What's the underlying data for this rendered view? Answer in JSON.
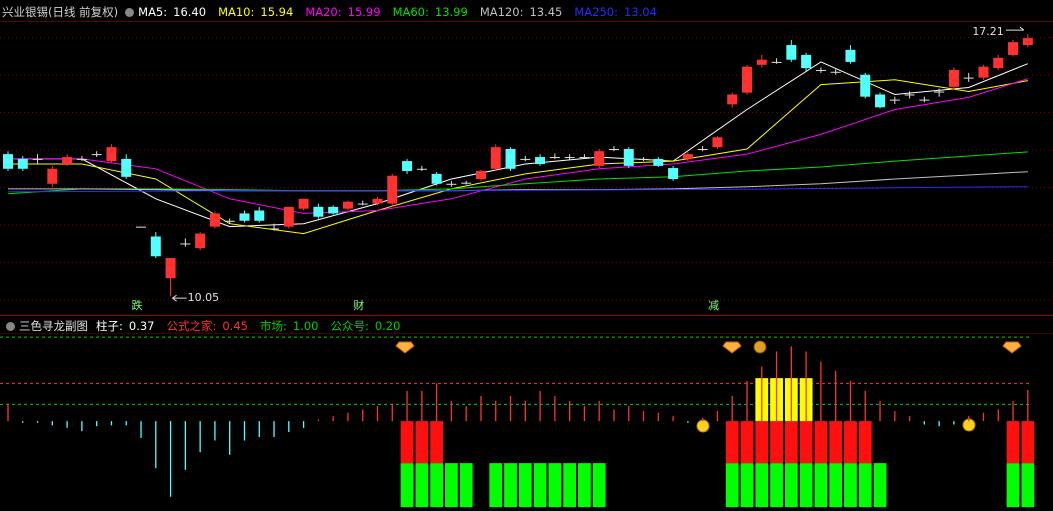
{
  "chart_data": [
    {
      "type": "candlestick",
      "title": "兴业银锡(日线 前复权)",
      "ylim": [
        9.59,
        17.54
      ],
      "up_color": "#ff3232",
      "down_color": "#54ffff",
      "doji_color": "#e0e0e0",
      "categories": [
        null,
        null,
        null,
        null,
        null,
        null,
        null,
        null,
        null,
        "跌",
        null,
        null,
        null,
        null,
        null,
        null,
        null,
        null,
        null,
        null,
        null,
        null,
        null,
        null,
        "财",
        null,
        null,
        null,
        null,
        null,
        null,
        null,
        null,
        null,
        null,
        null,
        null,
        null,
        null,
        null,
        null,
        null,
        null,
        null,
        null,
        null,
        null,
        null,
        "减",
        null,
        null,
        null,
        null,
        null,
        null,
        null,
        null,
        null,
        null,
        null,
        null,
        null,
        null,
        null,
        null,
        null,
        null,
        null,
        null,
        null
      ],
      "ohlc": [
        [
          13.93,
          14.01,
          13.47,
          13.53
        ],
        [
          13.8,
          13.88,
          13.47,
          13.53
        ],
        [
          13.8,
          13.93,
          13.66,
          13.8
        ],
        [
          13.12,
          13.61,
          13.04,
          13.53
        ],
        [
          13.66,
          13.93,
          13.61,
          13.85
        ],
        [
          13.8,
          13.88,
          13.74,
          13.8
        ],
        [
          13.93,
          14.01,
          13.85,
          13.93
        ],
        [
          13.74,
          14.2,
          13.7,
          14.12
        ],
        [
          13.8,
          13.93,
          13.25,
          13.31
        ],
        [
          11.95,
          11.95,
          11.95,
          11.95
        ],
        [
          11.68,
          11.8,
          11.09,
          11.14
        ],
        [
          10.54,
          11.09,
          10.05,
          11.09
        ],
        [
          11.49,
          11.63,
          11.4,
          11.49
        ],
        [
          11.36,
          11.8,
          11.3,
          11.76
        ],
        [
          11.95,
          12.36,
          11.9,
          12.31
        ],
        [
          12.11,
          12.17,
          12.03,
          12.11
        ],
        [
          12.31,
          12.39,
          12.06,
          12.11
        ],
        [
          12.39,
          12.49,
          12.06,
          12.11
        ],
        [
          11.9,
          12.03,
          11.84,
          11.9
        ],
        [
          11.95,
          12.49,
          11.9,
          12.49
        ],
        [
          12.44,
          12.71,
          12.39,
          12.71
        ],
        [
          12.49,
          12.58,
          12.17,
          12.22
        ],
        [
          12.49,
          12.53,
          12.28,
          12.31
        ],
        [
          12.44,
          12.66,
          12.39,
          12.63
        ],
        [
          12.58,
          12.66,
          12.53,
          12.58
        ],
        [
          12.58,
          12.76,
          12.53,
          12.71
        ],
        [
          12.58,
          13.39,
          12.49,
          13.34
        ],
        [
          13.74,
          13.8,
          13.39,
          13.47
        ],
        [
          13.53,
          13.61,
          13.47,
          13.53
        ],
        [
          13.39,
          13.44,
          13.07,
          13.12
        ],
        [
          13.12,
          13.2,
          13.04,
          13.12
        ],
        [
          13.15,
          13.2,
          13.1,
          13.15
        ],
        [
          13.25,
          13.5,
          13.2,
          13.47
        ],
        [
          13.53,
          14.2,
          13.47,
          14.12
        ],
        [
          14.07,
          14.12,
          13.47,
          13.53
        ],
        [
          13.8,
          13.88,
          13.74,
          13.8
        ],
        [
          13.85,
          13.93,
          13.61,
          13.66
        ],
        [
          13.85,
          13.95,
          13.8,
          13.85
        ],
        [
          13.85,
          13.93,
          13.78,
          13.85
        ],
        [
          13.85,
          13.93,
          13.8,
          13.85
        ],
        [
          13.61,
          14.07,
          13.55,
          14.01
        ],
        [
          14.07,
          14.15,
          14.01,
          14.07
        ],
        [
          14.07,
          14.12,
          13.55,
          13.61
        ],
        [
          13.8,
          13.85,
          13.74,
          13.8
        ],
        [
          13.8,
          13.85,
          13.58,
          13.61
        ],
        [
          13.55,
          13.61,
          13.2,
          13.25
        ],
        [
          13.8,
          13.98,
          13.74,
          13.93
        ],
        [
          14.07,
          14.15,
          14.01,
          14.07
        ],
        [
          14.12,
          14.42,
          14.07,
          14.39
        ],
        [
          15.29,
          15.61,
          15.2,
          15.56
        ],
        [
          15.61,
          16.37,
          15.56,
          16.32
        ],
        [
          16.37,
          16.64,
          16.3,
          16.51
        ],
        [
          16.45,
          16.55,
          16.4,
          16.45
        ],
        [
          16.91,
          17.05,
          16.45,
          16.51
        ],
        [
          16.64,
          16.7,
          16.2,
          16.28
        ],
        [
          16.23,
          16.3,
          16.15,
          16.23
        ],
        [
          16.18,
          16.25,
          16.1,
          16.18
        ],
        [
          16.78,
          16.91,
          16.4,
          16.45
        ],
        [
          16.1,
          16.15,
          15.45,
          15.5
        ],
        [
          15.56,
          15.61,
          15.18,
          15.21
        ],
        [
          15.42,
          15.5,
          15.3,
          15.42
        ],
        [
          15.56,
          15.65,
          15.45,
          15.56
        ],
        [
          15.42,
          15.5,
          15.35,
          15.42
        ],
        [
          15.64,
          15.72,
          15.5,
          15.64
        ],
        [
          15.77,
          16.3,
          15.7,
          16.23
        ],
        [
          16.02,
          16.15,
          15.9,
          16.02
        ],
        [
          16.02,
          16.37,
          15.96,
          16.32
        ],
        [
          16.28,
          16.64,
          16.23,
          16.56
        ],
        [
          16.64,
          17.05,
          16.6,
          16.99
        ],
        [
          16.91,
          17.21,
          16.85,
          17.1
        ]
      ],
      "series": [
        {
          "name": "MA5",
          "color": "#ffffff",
          "legend_value": "16.40",
          "x": [
            0,
            5,
            10,
            15,
            20,
            25,
            30,
            35,
            40,
            45,
            50,
            55,
            60,
            65,
            69
          ],
          "values": [
            13.8,
            13.8,
            12.71,
            11.95,
            12.03,
            12.58,
            13.25,
            13.66,
            13.85,
            13.74,
            15.15,
            16.45,
            15.56,
            15.75,
            16.4
          ]
        },
        {
          "name": "MA10",
          "color": "#ffff00",
          "legend_value": "15.94",
          "x": [
            0,
            5,
            10,
            15,
            20,
            25,
            30,
            35,
            40,
            45,
            50,
            55,
            60,
            65,
            69
          ],
          "values": [
            13.66,
            13.66,
            13.25,
            12.03,
            11.76,
            12.39,
            12.98,
            13.39,
            13.66,
            13.74,
            14.07,
            15.83,
            15.96,
            15.64,
            15.94
          ]
        },
        {
          "name": "MA20",
          "color": "#ff00ff",
          "legend_value": "15.99",
          "x": [
            0,
            5,
            10,
            15,
            20,
            25,
            30,
            35,
            40,
            45,
            50,
            55,
            60,
            65,
            69
          ],
          "values": [
            13.8,
            13.8,
            13.53,
            12.71,
            12.31,
            12.39,
            12.71,
            13.25,
            13.53,
            13.66,
            13.93,
            14.47,
            15.15,
            15.48,
            15.99
          ]
        },
        {
          "name": "MA60",
          "color": "#00e000",
          "legend_value": "13.99",
          "x": [
            0,
            5,
            10,
            15,
            20,
            25,
            30,
            35,
            40,
            45,
            50,
            55,
            60,
            65,
            69
          ],
          "values": [
            12.85,
            12.98,
            12.98,
            12.96,
            12.93,
            12.93,
            12.98,
            13.12,
            13.25,
            13.31,
            13.47,
            13.58,
            13.74,
            13.88,
            13.99
          ]
        },
        {
          "name": "MA120",
          "color": "#c0c0c0",
          "legend_value": "13.45",
          "x": [
            0,
            5,
            10,
            15,
            20,
            25,
            30,
            35,
            40,
            45,
            50,
            55,
            60,
            65,
            69
          ],
          "values": [
            12.98,
            12.98,
            12.96,
            12.93,
            12.93,
            12.93,
            12.93,
            12.96,
            12.96,
            12.98,
            13.04,
            13.12,
            13.25,
            13.36,
            13.45
          ]
        },
        {
          "name": "MA250",
          "color": "#2a2aff",
          "legend_value": "13.04",
          "x": [
            0,
            5,
            10,
            15,
            20,
            25,
            30,
            35,
            40,
            45,
            50,
            55,
            60,
            65,
            69
          ],
          "values": [
            12.9,
            12.91,
            12.92,
            12.93,
            12.93,
            12.93,
            12.93,
            12.94,
            12.95,
            12.96,
            12.97,
            12.99,
            13.01,
            13.03,
            13.04
          ]
        }
      ]
    },
    {
      "type": "signal-bar",
      "title": "三色寻龙副图",
      "ylim": [
        -1.07,
        1.24
      ],
      "series": [
        {
          "name": "柱子",
          "legend_value": "0.37",
          "color": "#ffffff",
          "up_color": "#ff3232",
          "down_color": "#54ffff",
          "values": [
            0.21,
            -0.02,
            -0.02,
            -0.05,
            -0.08,
            -0.12,
            -0.06,
            -0.05,
            -0.05,
            -0.2,
            -0.56,
            -0.9,
            -0.58,
            -0.37,
            -0.23,
            -0.4,
            -0.23,
            -0.19,
            -0.19,
            -0.13,
            -0.08,
            0.02,
            0.06,
            0.1,
            0.14,
            0.18,
            0.21,
            0.36,
            0.36,
            0.45,
            0.24,
            0.18,
            0.3,
            0.24,
            0.3,
            0.24,
            0.36,
            0.3,
            0.24,
            0.18,
            0.24,
            0.14,
            0.18,
            0.12,
            0.1,
            0.06,
            -0.02,
            0.04,
            0.12,
            0.3,
            0.48,
            0.65,
            0.83,
            0.89,
            0.83,
            0.71,
            0.6,
            0.48,
            0.36,
            0.24,
            0.12,
            0.06,
            -0.04,
            -0.06,
            -0.04,
            0.06,
            0.1,
            0.14,
            0.24,
            0.37
          ]
        }
      ],
      "levels": [
        {
          "name": "公式之家",
          "value": 0.45,
          "legend_value": "0.45",
          "color": "#ff3232"
        },
        {
          "name": "市场",
          "value": 1,
          "legend_value": "1.00",
          "color": "#00d000"
        },
        {
          "name": "公众号",
          "value": 0.2,
          "legend_value": "0.20",
          "color": "#00d000"
        }
      ],
      "signals": {
        "red": {
          "color": "#ff1010",
          "indices": [
            27,
            28,
            29,
            49,
            50,
            51,
            52,
            53,
            54,
            55,
            56,
            57,
            58,
            68,
            69
          ]
        },
        "yellow": {
          "color": "#ffff00",
          "indices": [
            51,
            52,
            53,
            54
          ]
        },
        "green": {
          "color": "#00ff00",
          "indices": [
            27,
            28,
            29,
            30,
            31,
            33,
            34,
            35,
            36,
            37,
            38,
            39,
            40,
            49,
            50,
            51,
            52,
            53,
            54,
            55,
            56,
            57,
            58,
            59,
            68,
            69
          ]
        }
      }
    }
  ]
}
